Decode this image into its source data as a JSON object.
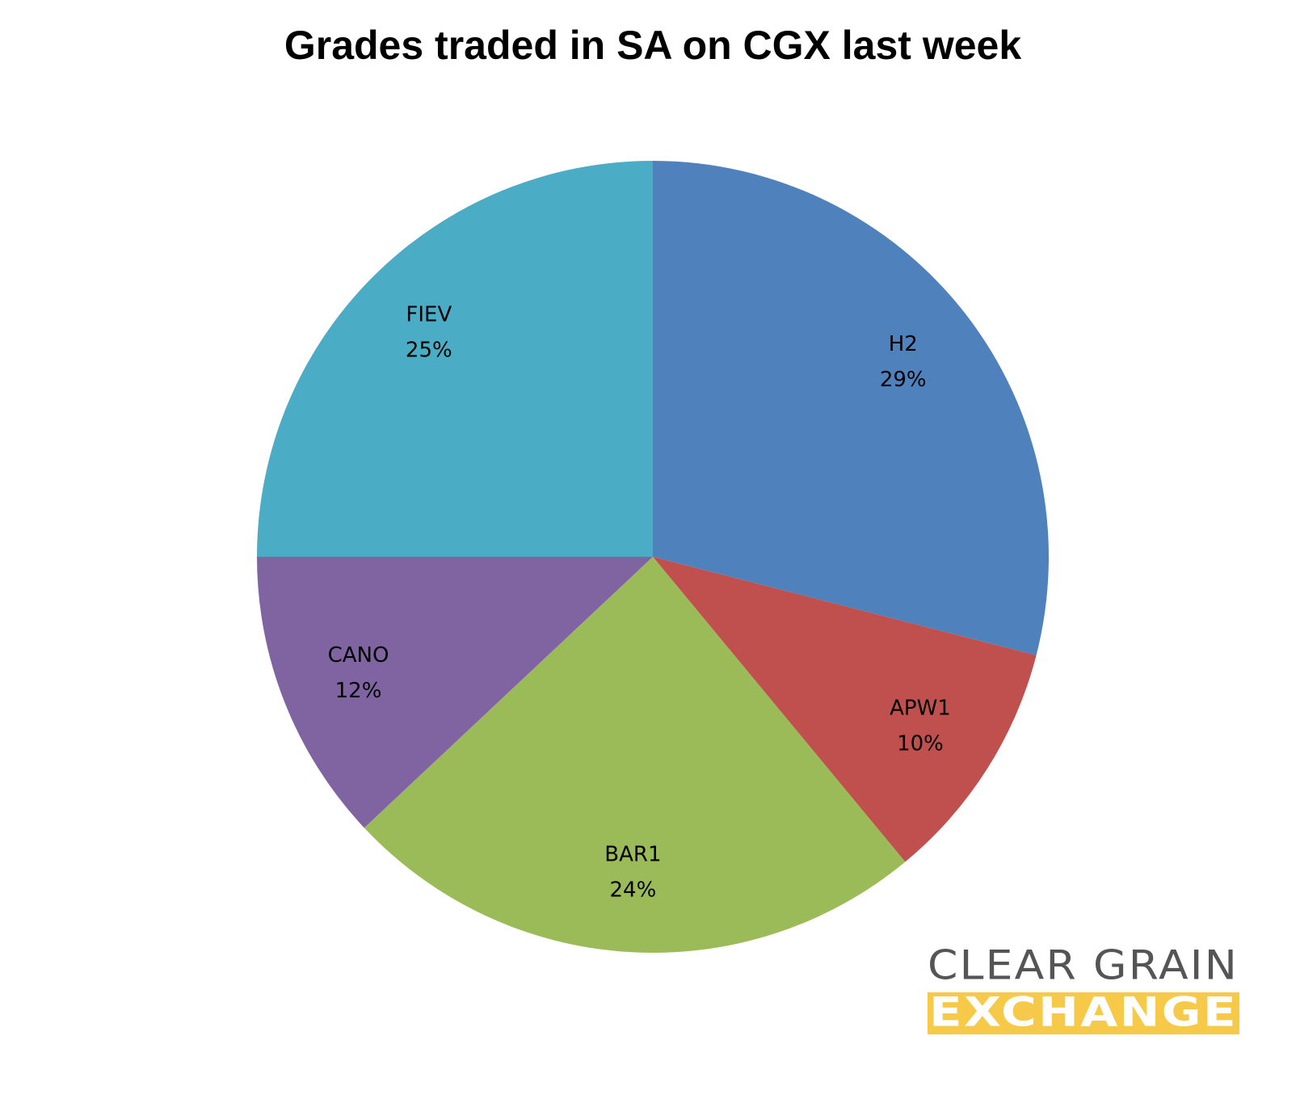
{
  "chart_data": {
    "type": "pie",
    "title": "Grades traded in SA on CGX last week",
    "categories": [
      "H2",
      "APW1",
      "BAR1",
      "CANO",
      "FIEV"
    ],
    "values": [
      29,
      10,
      24,
      12,
      25
    ],
    "value_labels": [
      "29%",
      "10%",
      "24%",
      "12%",
      "25%"
    ],
    "colors": [
      "#4f81bd",
      "#c0504d",
      "#9bbb59",
      "#8064a2",
      "#4bacc6"
    ]
  },
  "logo": {
    "line1": "CLEAR GRAIN",
    "line2": "EXCHANGE"
  }
}
